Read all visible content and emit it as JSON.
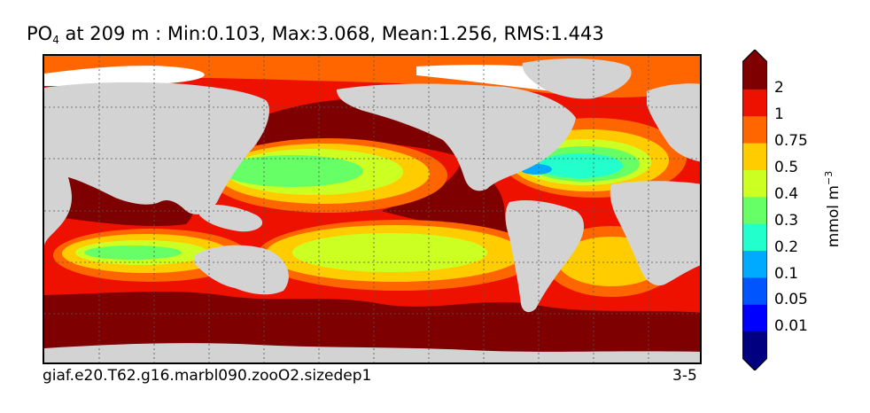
{
  "title": {
    "variable": "PO",
    "subscript": "4",
    "rest": " at 209 m : Min:0.103, Max:3.068, Mean:1.256, RMS:1.443"
  },
  "footer": {
    "case_name": "giaf.e20.T62.g16.marbl090.zooO2.sizedep1",
    "years": "3-5"
  },
  "colorbar": {
    "unit_main": "mmol m",
    "unit_exp": "−3",
    "ticks": [
      "2",
      "1",
      "0.75",
      "0.5",
      "0.4",
      "0.3",
      "0.2",
      "0.1",
      "0.05",
      "0.01"
    ],
    "colors": [
      "#000080",
      "#0000ff",
      "#0055ff",
      "#00aaff",
      "#22ffcc",
      "#66ff66",
      "#ccff22",
      "#ffcc00",
      "#ff6600",
      "#ee1100",
      "#7f0000"
    ]
  },
  "map_colors": {
    "land": "#d3d3d3",
    "ice": "#ffffff",
    "gt2": "#7f0000",
    "c1_2": "#ee1100",
    "c075_1": "#ff6600",
    "c05_075": "#ffcc00",
    "c04_05": "#ccff22",
    "c03_04": "#66ff66",
    "c02_03": "#22ffcc",
    "c01_02": "#00aaff"
  }
}
